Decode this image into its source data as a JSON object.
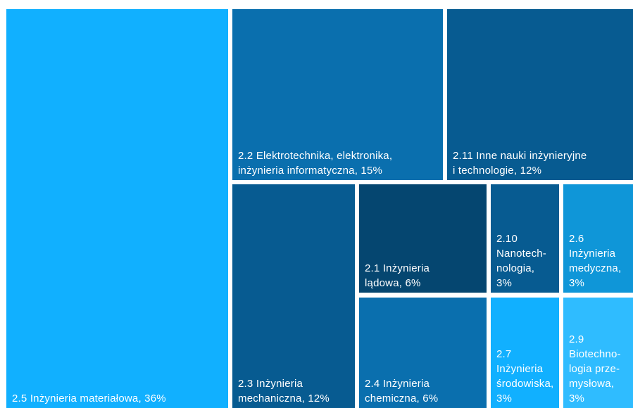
{
  "chart_data": {
    "type": "treemap",
    "items": [
      {
        "code": "2.5",
        "name": "Inżynieria materiałowa",
        "value": 36,
        "label": "2.5 Inżynieria materiałowa, 36%",
        "color": "#11b0ff"
      },
      {
        "code": "2.2",
        "name": "Elektrotechnika, elektronika, inżynieria informatyczna",
        "value": 15,
        "label": "2.2 Elektrotechnika, elektronika,\ninżynieria informatyczna, 15%",
        "color": "#0a6fae"
      },
      {
        "code": "2.11",
        "name": "Inne nauki inżynieryjne i technologie",
        "value": 12,
        "label": "2.11 Inne nauki inżynieryjne\ni technologie, 12%",
        "color": "#075b91"
      },
      {
        "code": "2.3",
        "name": "Inżynieria mechaniczna",
        "value": 12,
        "label": "2.3 Inżynieria\nmechaniczna, 12%",
        "color": "#075b91"
      },
      {
        "code": "2.1",
        "name": "Inżynieria lądowa",
        "value": 6,
        "label": "2.1 Inżynieria\nlądowa, 6%",
        "color": "#054670"
      },
      {
        "code": "2.4",
        "name": "Inżynieria chemiczna",
        "value": 6,
        "label": "2.4 Inżynieria\nchemiczna, 6%",
        "color": "#0a6fae"
      },
      {
        "code": "2.10",
        "name": "Nanotechnologia",
        "value": 3,
        "label": "2.10\nNanotech-\nnologia,\n3%",
        "color": "#075b91"
      },
      {
        "code": "2.6",
        "name": "Inżynieria medyczna",
        "value": 3,
        "label": "2.6\nInżynieria\nmedyczna,\n3%",
        "color": "#0f96d8"
      },
      {
        "code": "2.7",
        "name": "Inżynieria środowiska",
        "value": 3,
        "label": "2.7\nInżynieria\nśrodowiska,\n3%",
        "color": "#11b0ff"
      },
      {
        "code": "2.9",
        "name": "Biotechnologia przemysłowa",
        "value": 3,
        "label": "2.9\nBiotechno-\nlogia prze-\nmysłowa,\n3%",
        "color": "#2fbcff"
      }
    ]
  }
}
